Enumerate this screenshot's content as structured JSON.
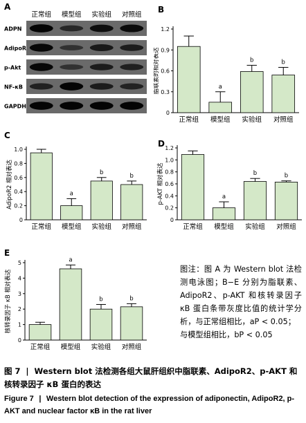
{
  "panel_letters": {
    "A": "A",
    "B": "B",
    "C": "C",
    "D": "D",
    "E": "E"
  },
  "blot": {
    "groups": [
      "正常组",
      "模型组",
      "实验组",
      "对照组"
    ],
    "rows": [
      {
        "label": "ADPN",
        "intensity": [
          0.95,
          0.45,
          0.8,
          0.85
        ]
      },
      {
        "label": "AdipoR2",
        "intensity": [
          0.9,
          0.3,
          0.65,
          0.6
        ]
      },
      {
        "label": "p-Akt",
        "intensity": [
          0.9,
          0.3,
          0.6,
          0.55
        ]
      },
      {
        "label": "NF-κB",
        "intensity": [
          0.55,
          0.95,
          0.6,
          0.5
        ]
      },
      {
        "label": "GAPDH",
        "intensity": [
          0.95,
          0.95,
          0.95,
          0.95
        ]
      }
    ]
  },
  "chart_data": [
    {
      "panel": "B",
      "type": "bar",
      "categories": [
        "正常组",
        "模型组",
        "实验组",
        "对照组"
      ],
      "values": [
        0.95,
        0.15,
        0.59,
        0.54
      ],
      "errors": [
        0.15,
        0.15,
        0.09,
        0.11
      ],
      "sig": [
        "",
        "a",
        "b",
        "b"
      ],
      "ylabel": "脂联素的相对表达",
      "ylim": [
        0,
        1.2
      ],
      "yticks": [
        "0",
        "0.3",
        "0.6",
        "0.9",
        "1.2"
      ],
      "ytick_values": [
        0,
        0.3,
        0.6,
        0.9,
        1.2
      ],
      "bar_color": "#d4e8c8"
    },
    {
      "panel": "C",
      "type": "bar",
      "categories": [
        "正常组",
        "模型组",
        "实验组",
        "对照组"
      ],
      "values": [
        0.95,
        0.2,
        0.55,
        0.5
      ],
      "errors": [
        0.05,
        0.1,
        0.05,
        0.05
      ],
      "sig": [
        "",
        "a",
        "b",
        "b"
      ],
      "ylabel": "AdipoR2 相对表达",
      "ylim": [
        0,
        1.0
      ],
      "yticks": [
        "0",
        "0.2",
        "0.4",
        "0.6",
        "0.8",
        "1.0"
      ],
      "ytick_values": [
        0,
        0.2,
        0.4,
        0.6,
        0.8,
        1.0
      ],
      "bar_color": "#d4e8c8"
    },
    {
      "panel": "D",
      "type": "bar",
      "categories": [
        "正常组",
        "模型组",
        "实验组",
        "对照组"
      ],
      "values": [
        1.09,
        0.2,
        0.64,
        0.63
      ],
      "errors": [
        0.06,
        0.1,
        0.05,
        0.02
      ],
      "sig": [
        "",
        "a",
        "b",
        "b"
      ],
      "ylabel": "p-AKT 相对表达",
      "ylim": [
        0,
        1.2
      ],
      "yticks": [
        "0",
        "0.2",
        "0.4",
        "0.6",
        "0.8",
        "1.0",
        "1.2"
      ],
      "ytick_values": [
        0,
        0.2,
        0.4,
        0.6,
        0.8,
        1.0,
        1.2
      ],
      "bar_color": "#d4e8c8"
    },
    {
      "panel": "E",
      "type": "bar",
      "categories": [
        "正常组",
        "模型组",
        "实验组",
        "对照组"
      ],
      "values": [
        1.0,
        4.6,
        2.0,
        2.15
      ],
      "errors": [
        0.15,
        0.25,
        0.3,
        0.2
      ],
      "sig": [
        "",
        "a",
        "b",
        "b"
      ],
      "ylabel": "核转录因子 κB 相对表达",
      "ylim": [
        0,
        5
      ],
      "yticks": [
        "0",
        "1",
        "2",
        "3",
        "4",
        "5"
      ],
      "ytick_values": [
        0,
        1,
        2,
        3,
        4,
        5
      ],
      "bar_color": "#d4e8c8"
    }
  ],
  "note": {
    "line1": "图注：图 A 为 Western blot 法检测电泳图；B−E 分别为脂联素、AdipoR2、p-AKT 和核转录因子 κB 蛋白条带灰度比值的统计学分析，与正常组相比，",
    "p_a": "aP < 0.05；",
    "line2": "与模型组相比，",
    "p_b": "bP < 0.05"
  },
  "caption": {
    "cn_fig": "图 7",
    "cn_text": "Western blot 法检测各组大鼠肝组织中脂联素、AdipoR2、p-AKT 和核转录因子 κB 蛋白的表达",
    "en_fig": "Figure 7",
    "en_text": "Western blot detection of the expression of adiponectin, AdipoR2, p-AKT and nuclear factor κB in the rat liver"
  }
}
